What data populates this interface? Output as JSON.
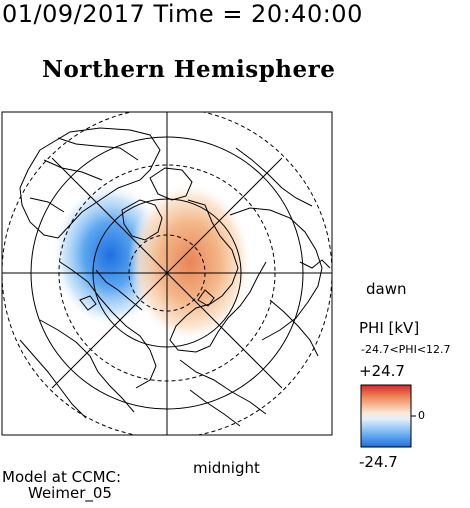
{
  "header": {
    "datetime": "01/09/2017 Time = 20:40:00"
  },
  "title": "Northern Hemisphere",
  "labels": {
    "dawn": "dawn",
    "midnight": "midnight"
  },
  "colorbar": {
    "title": "PHI [kV]",
    "range_text": "-24.7<PHI<12.7",
    "max_label": "+24.7",
    "zero_label": "0",
    "min_label": "-24.7",
    "min": -24.7,
    "max": 24.7,
    "colors": {
      "negative": "#3a8ee8",
      "neutral": "#ffffff",
      "positive": "#e8404a"
    }
  },
  "footer": {
    "line1": "Model at CCMC:",
    "line2": "Weimer_05"
  },
  "map": {
    "projection": "polar",
    "pole": "north",
    "potential_cells": [
      {
        "sign": "negative",
        "color": "#3a8ee8"
      },
      {
        "sign": "positive",
        "color": "#e8804a"
      }
    ]
  }
}
